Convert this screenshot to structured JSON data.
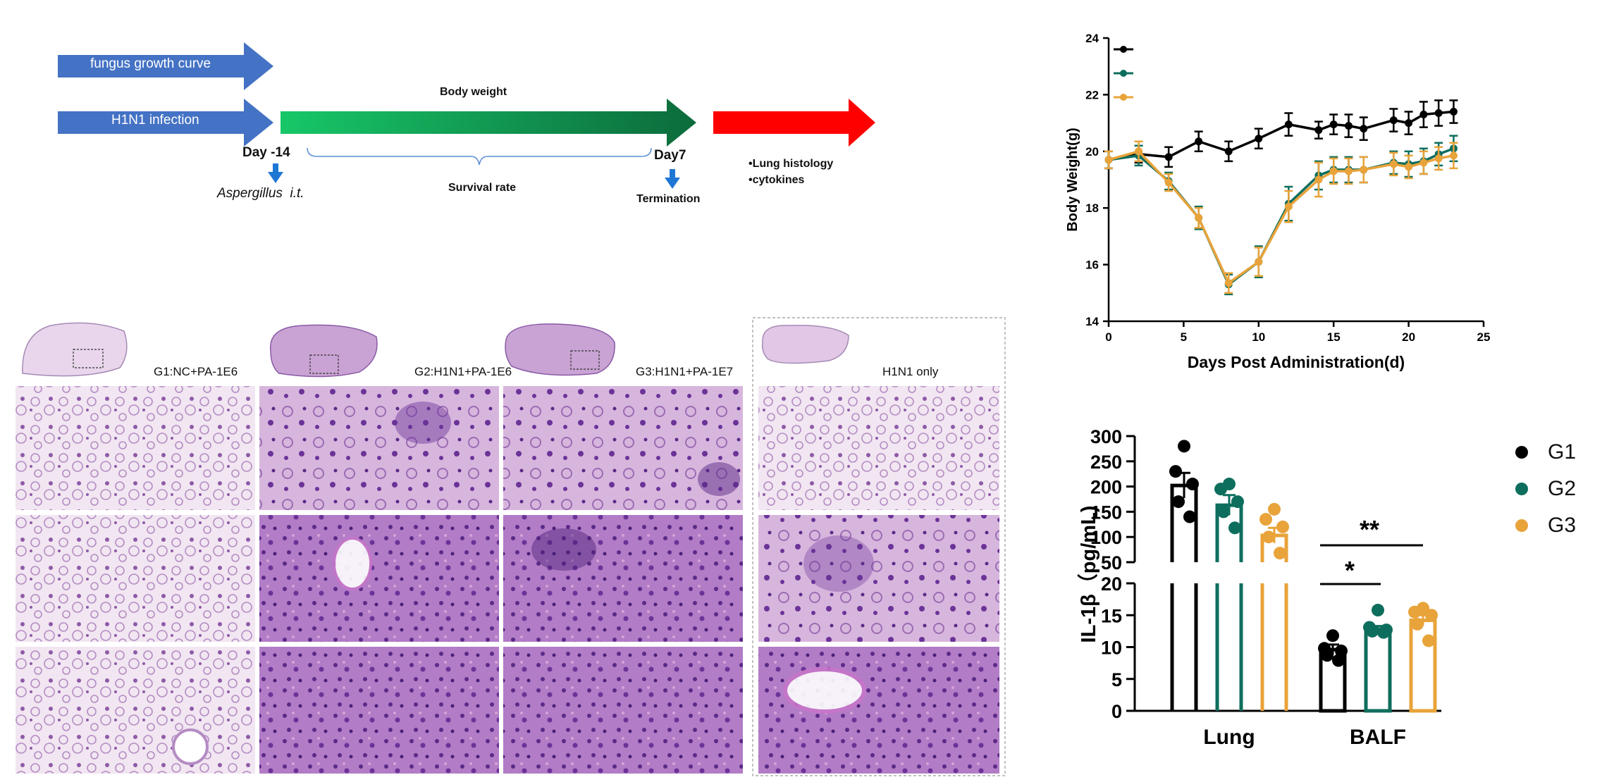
{
  "timeline": {
    "arrows": {
      "fungus": "fungus growth curve",
      "h1n1": "H1N1 infection",
      "body_weight": "Body weight",
      "survival": "Survival rate"
    },
    "markers": {
      "day_start": "Day -14",
      "day_end": "Day7",
      "aspergillus": "Aspergillus  i.t.",
      "termination": "Termination"
    },
    "outcomes": [
      "•Lung histology",
      "•cytokines"
    ],
    "colors": {
      "blue": "#4472c4",
      "green_start": "#17c768",
      "green_end": "#0c6b3c",
      "red": "#ff0000",
      "marker_blue": "#1f77d4"
    }
  },
  "histology": {
    "labels": [
      "G1:NC+PA-1E6",
      "G2:H1N1+PA-1E6",
      "G3:H1N1+PA-1E7",
      "H1N1 only"
    ]
  },
  "chart_data": [
    {
      "type": "line",
      "xlabel": "Days Post Administration(d)",
      "ylabel": "Body Weight(g)",
      "xlim": [
        0,
        25
      ],
      "ylim": [
        14,
        24
      ],
      "xticks": [
        0,
        5,
        10,
        15,
        20,
        25
      ],
      "yticks": [
        14,
        16,
        18,
        20,
        22,
        24
      ],
      "legend": "top-left",
      "series": [
        {
          "color": "#000000",
          "x": [
            0,
            2,
            4,
            6,
            8,
            10,
            12,
            14,
            15,
            16,
            17,
            19,
            20,
            21,
            22,
            23
          ],
          "y": [
            19.7,
            19.9,
            19.8,
            20.35,
            20.0,
            20.45,
            20.95,
            20.75,
            20.95,
            20.9,
            20.8,
            21.1,
            21.0,
            21.3,
            21.35,
            21.4
          ],
          "err": [
            0.3,
            0.3,
            0.35,
            0.35,
            0.35,
            0.35,
            0.4,
            0.3,
            0.35,
            0.4,
            0.4,
            0.4,
            0.4,
            0.45,
            0.45,
            0.4
          ]
        },
        {
          "color": "#0e6e5d",
          "x": [
            0,
            2,
            4,
            6,
            8,
            10,
            12,
            14,
            15,
            16,
            17,
            19,
            20,
            21,
            22,
            23
          ],
          "y": [
            19.7,
            19.85,
            18.95,
            17.65,
            15.3,
            16.1,
            18.15,
            19.15,
            19.35,
            19.35,
            19.35,
            19.6,
            19.55,
            19.65,
            19.9,
            20.1
          ],
          "err": [
            0.3,
            0.35,
            0.3,
            0.4,
            0.35,
            0.55,
            0.6,
            0.5,
            0.45,
            0.45,
            0.45,
            0.4,
            0.45,
            0.45,
            0.4,
            0.45
          ]
        },
        {
          "color": "#e8a33a",
          "x": [
            0,
            2,
            4,
            6,
            8,
            10,
            12,
            14,
            15,
            16,
            17,
            19,
            20,
            21,
            22,
            23
          ],
          "y": [
            19.7,
            20.0,
            18.9,
            17.65,
            15.35,
            16.1,
            18.05,
            19.0,
            19.3,
            19.3,
            19.35,
            19.55,
            19.45,
            19.6,
            19.75,
            19.85
          ],
          "err": [
            0.3,
            0.35,
            0.3,
            0.35,
            0.35,
            0.5,
            0.55,
            0.6,
            0.45,
            0.45,
            0.45,
            0.4,
            0.4,
            0.4,
            0.4,
            0.45
          ]
        }
      ]
    },
    {
      "type": "bar",
      "ylabel": "IL-1β（pg/mL)",
      "categories": [
        "Lung",
        "BALF"
      ],
      "yticks_lower": [
        0,
        5,
        10,
        15,
        20
      ],
      "yticks_upper": [
        50,
        100,
        150,
        200,
        250,
        300
      ],
      "axis_break": [
        20,
        50
      ],
      "series": [
        {
          "name": "G1",
          "color": "#000000",
          "values": [
            202,
            9.6
          ],
          "err": [
            25,
            0.8
          ],
          "points": [
            [
              280,
              230,
              205,
              170,
              140
            ],
            [
              11.8,
              9.8,
              9.4,
              8.7,
              7.9
            ]
          ]
        },
        {
          "name": "G2",
          "color": "#0e6e5d",
          "values": [
            163,
            12.7
          ],
          "err": [
            20,
            0.6
          ],
          "points": [
            [
              205,
              195,
              170,
              150,
              118
            ],
            [
              15.8,
              13.1,
              12.7,
              12.5,
              12.3
            ]
          ]
        },
        {
          "name": "G3",
          "color": "#e8a33a",
          "values": [
            103,
            14.2
          ],
          "err": [
            15,
            0.8
          ],
          "points": [
            [
              155,
              135,
              120,
              100,
              68
            ],
            [
              16.1,
              15.5,
              15.0,
              13.6,
              11.0
            ]
          ]
        }
      ],
      "significance": [
        {
          "label": "*",
          "between": [
            "G1",
            "G2"
          ],
          "category": "BALF"
        },
        {
          "label": "**",
          "between": [
            "G1",
            "G3"
          ],
          "category": "BALF"
        }
      ],
      "legend": "right"
    }
  ]
}
